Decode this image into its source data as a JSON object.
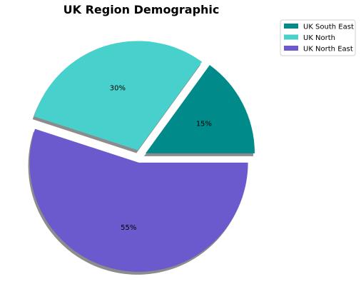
{
  "chart_data": {
    "type": "pie",
    "title": "UK Region Demographic",
    "categories": [
      "UK South East",
      "UK North",
      "UK North East"
    ],
    "values": [
      15,
      30,
      55
    ],
    "value_labels": [
      "15%",
      "30%",
      "55%"
    ],
    "colors": [
      "#008b8a",
      "#48d1cc",
      "#6a5acd"
    ],
    "exploded": true,
    "shadow": true,
    "start_angle_deg": 0,
    "direction": "counterclockwise",
    "legend_position": "top-right"
  }
}
